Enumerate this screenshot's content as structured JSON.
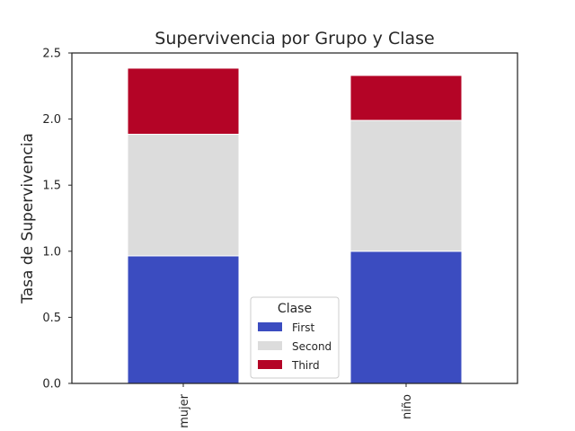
{
  "chart_data": {
    "type": "bar",
    "stacked": true,
    "title": "Supervivencia por Grupo y Clase",
    "xlabel": "",
    "ylabel": "Tasa de Supervivencia",
    "categories": [
      "mujer",
      "niño"
    ],
    "series": [
      {
        "name": "First",
        "color": "#3b4cc0",
        "values": [
          0.965,
          1.0
        ]
      },
      {
        "name": "Second",
        "color": "#dcdcdc",
        "values": [
          0.92,
          0.99
        ]
      },
      {
        "name": "Third",
        "color": "#b40426",
        "values": [
          0.5,
          0.34
        ]
      }
    ],
    "ylim": [
      0,
      2.5
    ],
    "yticks": [
      "0.0",
      "0.5",
      "1.0",
      "1.5",
      "2.0",
      "2.5"
    ],
    "grid": false,
    "legend": {
      "title": "Clase",
      "position": "lower-center"
    }
  }
}
